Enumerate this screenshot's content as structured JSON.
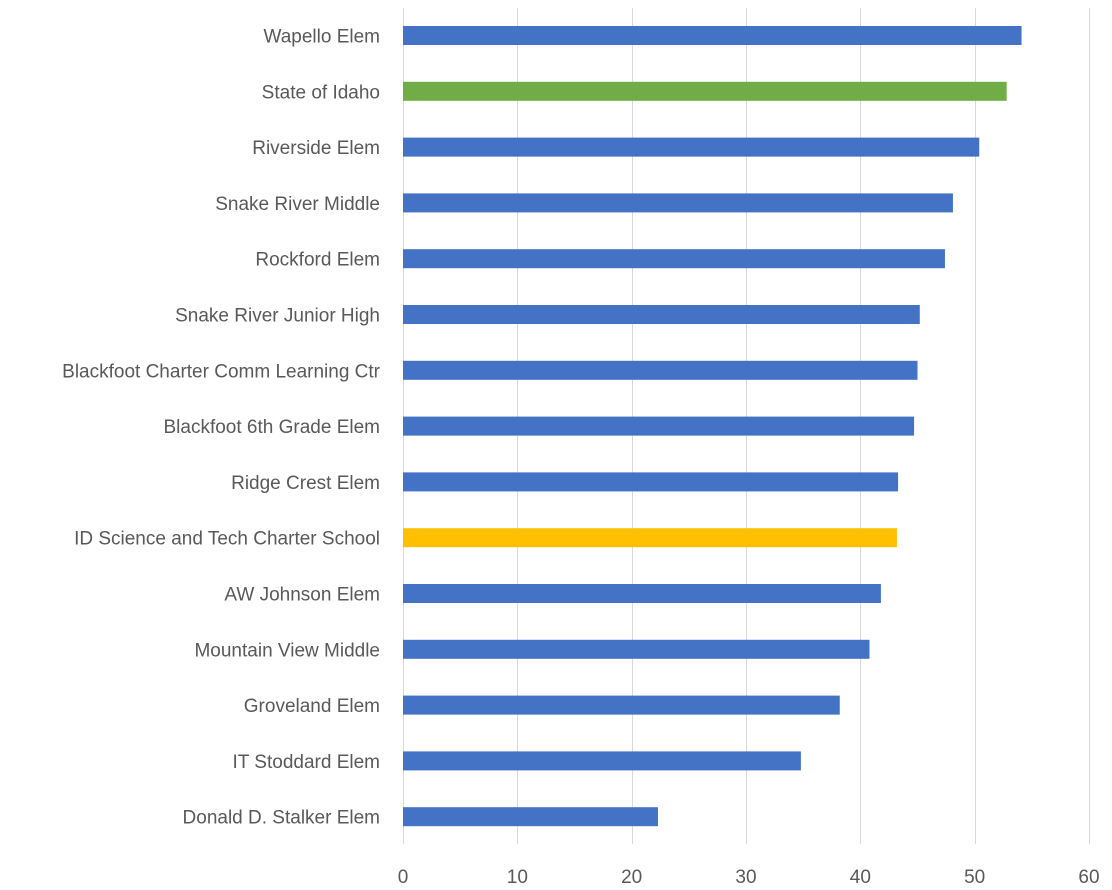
{
  "chart_data": {
    "type": "bar",
    "orientation": "horizontal",
    "title": "",
    "xlabel": "",
    "ylabel": "",
    "xlim": [
      0,
      60
    ],
    "xticks": [
      0,
      10,
      20,
      30,
      40,
      50,
      60
    ],
    "grid": true,
    "legend": "none",
    "categories": [
      "Wapello Elem",
      "State of Idaho",
      "Riverside Elem",
      "Snake River Middle",
      "Rockford Elem",
      "Snake River Junior High",
      "Blackfoot Charter Comm Learning Ctr",
      "Blackfoot 6th Grade Elem",
      "Ridge Crest Elem",
      "ID Science and Tech Charter School",
      "AW Johnson Elem",
      "Mountain View Middle",
      "Groveland Elem",
      "IT Stoddard Elem",
      "Donald D. Stalker Elem"
    ],
    "values": [
      54.1,
      52.8,
      50.4,
      48.1,
      47.4,
      45.2,
      45.0,
      44.7,
      43.3,
      43.2,
      41.8,
      40.8,
      38.2,
      34.8,
      22.3
    ],
    "colors": [
      "#4472C4",
      "#70AD47",
      "#4472C4",
      "#4472C4",
      "#4472C4",
      "#4472C4",
      "#4472C4",
      "#4472C4",
      "#4472C4",
      "#FFC000",
      "#4472C4",
      "#4472C4",
      "#4472C4",
      "#4472C4",
      "#4472C4"
    ]
  }
}
